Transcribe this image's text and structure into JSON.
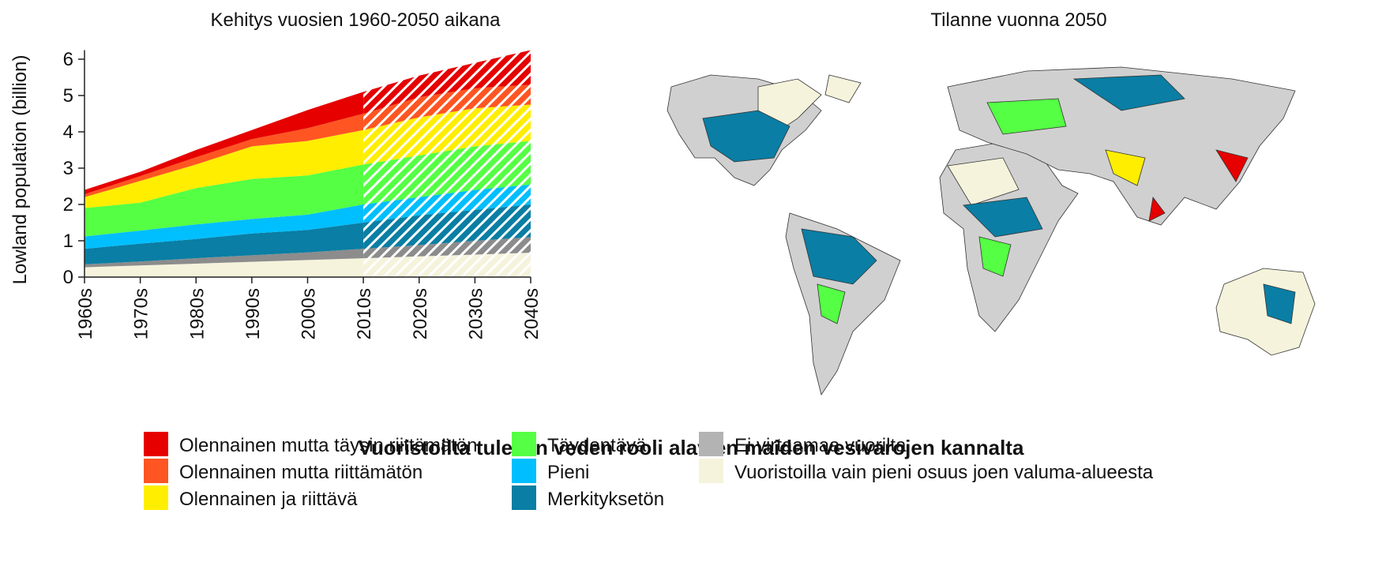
{
  "chart_data": {
    "type": "stacked_area",
    "title": "Kehitys vuosien 1960-2050 aikana",
    "map_title": "Tilanne vuonna 2050",
    "y_label": "Lowland population (billion)",
    "legend_title": "Vuoristoilta tulevan veden rooli alavien maiden vesivarojen kannalta",
    "categories": [
      "1960s",
      "1970s",
      "1980s",
      "1990s",
      "2000s",
      "2010s",
      "2020s",
      "2030s",
      "2040s"
    ],
    "hatched_from": "2010s",
    "ylim": [
      0,
      6.25
    ],
    "yticks": [
      0,
      1,
      2,
      3,
      4,
      5,
      6
    ],
    "series": [
      {
        "name": "Vuoristoilla vain pieni osuus joen valuma-alueesta",
        "color": "#f5f3dc",
        "values": [
          0.27,
          0.32,
          0.37,
          0.42,
          0.47,
          0.52,
          0.57,
          0.62,
          0.67
        ]
      },
      {
        "name": "Ei virtaamaa vuorilta",
        "color": "#8c8c8c",
        "values": [
          0.08,
          0.11,
          0.15,
          0.18,
          0.21,
          0.26,
          0.31,
          0.38,
          0.43
        ]
      },
      {
        "name": "Merkityksetön",
        "color": "#0a7ea4",
        "values": [
          0.43,
          0.49,
          0.53,
          0.6,
          0.62,
          0.72,
          0.82,
          0.85,
          0.9
        ]
      },
      {
        "name": "Pieni",
        "color": "#00bfff",
        "values": [
          0.34,
          0.36,
          0.4,
          0.4,
          0.42,
          0.5,
          0.5,
          0.55,
          0.55
        ]
      },
      {
        "name": "Täydentävä",
        "color": "#55ff44",
        "values": [
          0.78,
          0.77,
          1.0,
          1.1,
          1.08,
          1.1,
          1.15,
          1.2,
          1.2
        ]
      },
      {
        "name": "Olennainen ja riittävä",
        "color": "#ffee00",
        "values": [
          0.3,
          0.6,
          0.65,
          0.9,
          0.95,
          0.95,
          1.05,
          1.05,
          1.0
        ]
      },
      {
        "name": "Olennainen mutta riittämätön",
        "color": "#ff5522",
        "values": [
          0.08,
          0.13,
          0.2,
          0.2,
          0.35,
          0.45,
          0.55,
          0.55,
          0.55
        ]
      },
      {
        "name": "Olennainen mutta täysin riittämätön",
        "color": "#e60000",
        "values": [
          0.12,
          0.12,
          0.2,
          0.25,
          0.5,
          0.6,
          0.6,
          0.7,
          0.95
        ]
      }
    ]
  }
}
